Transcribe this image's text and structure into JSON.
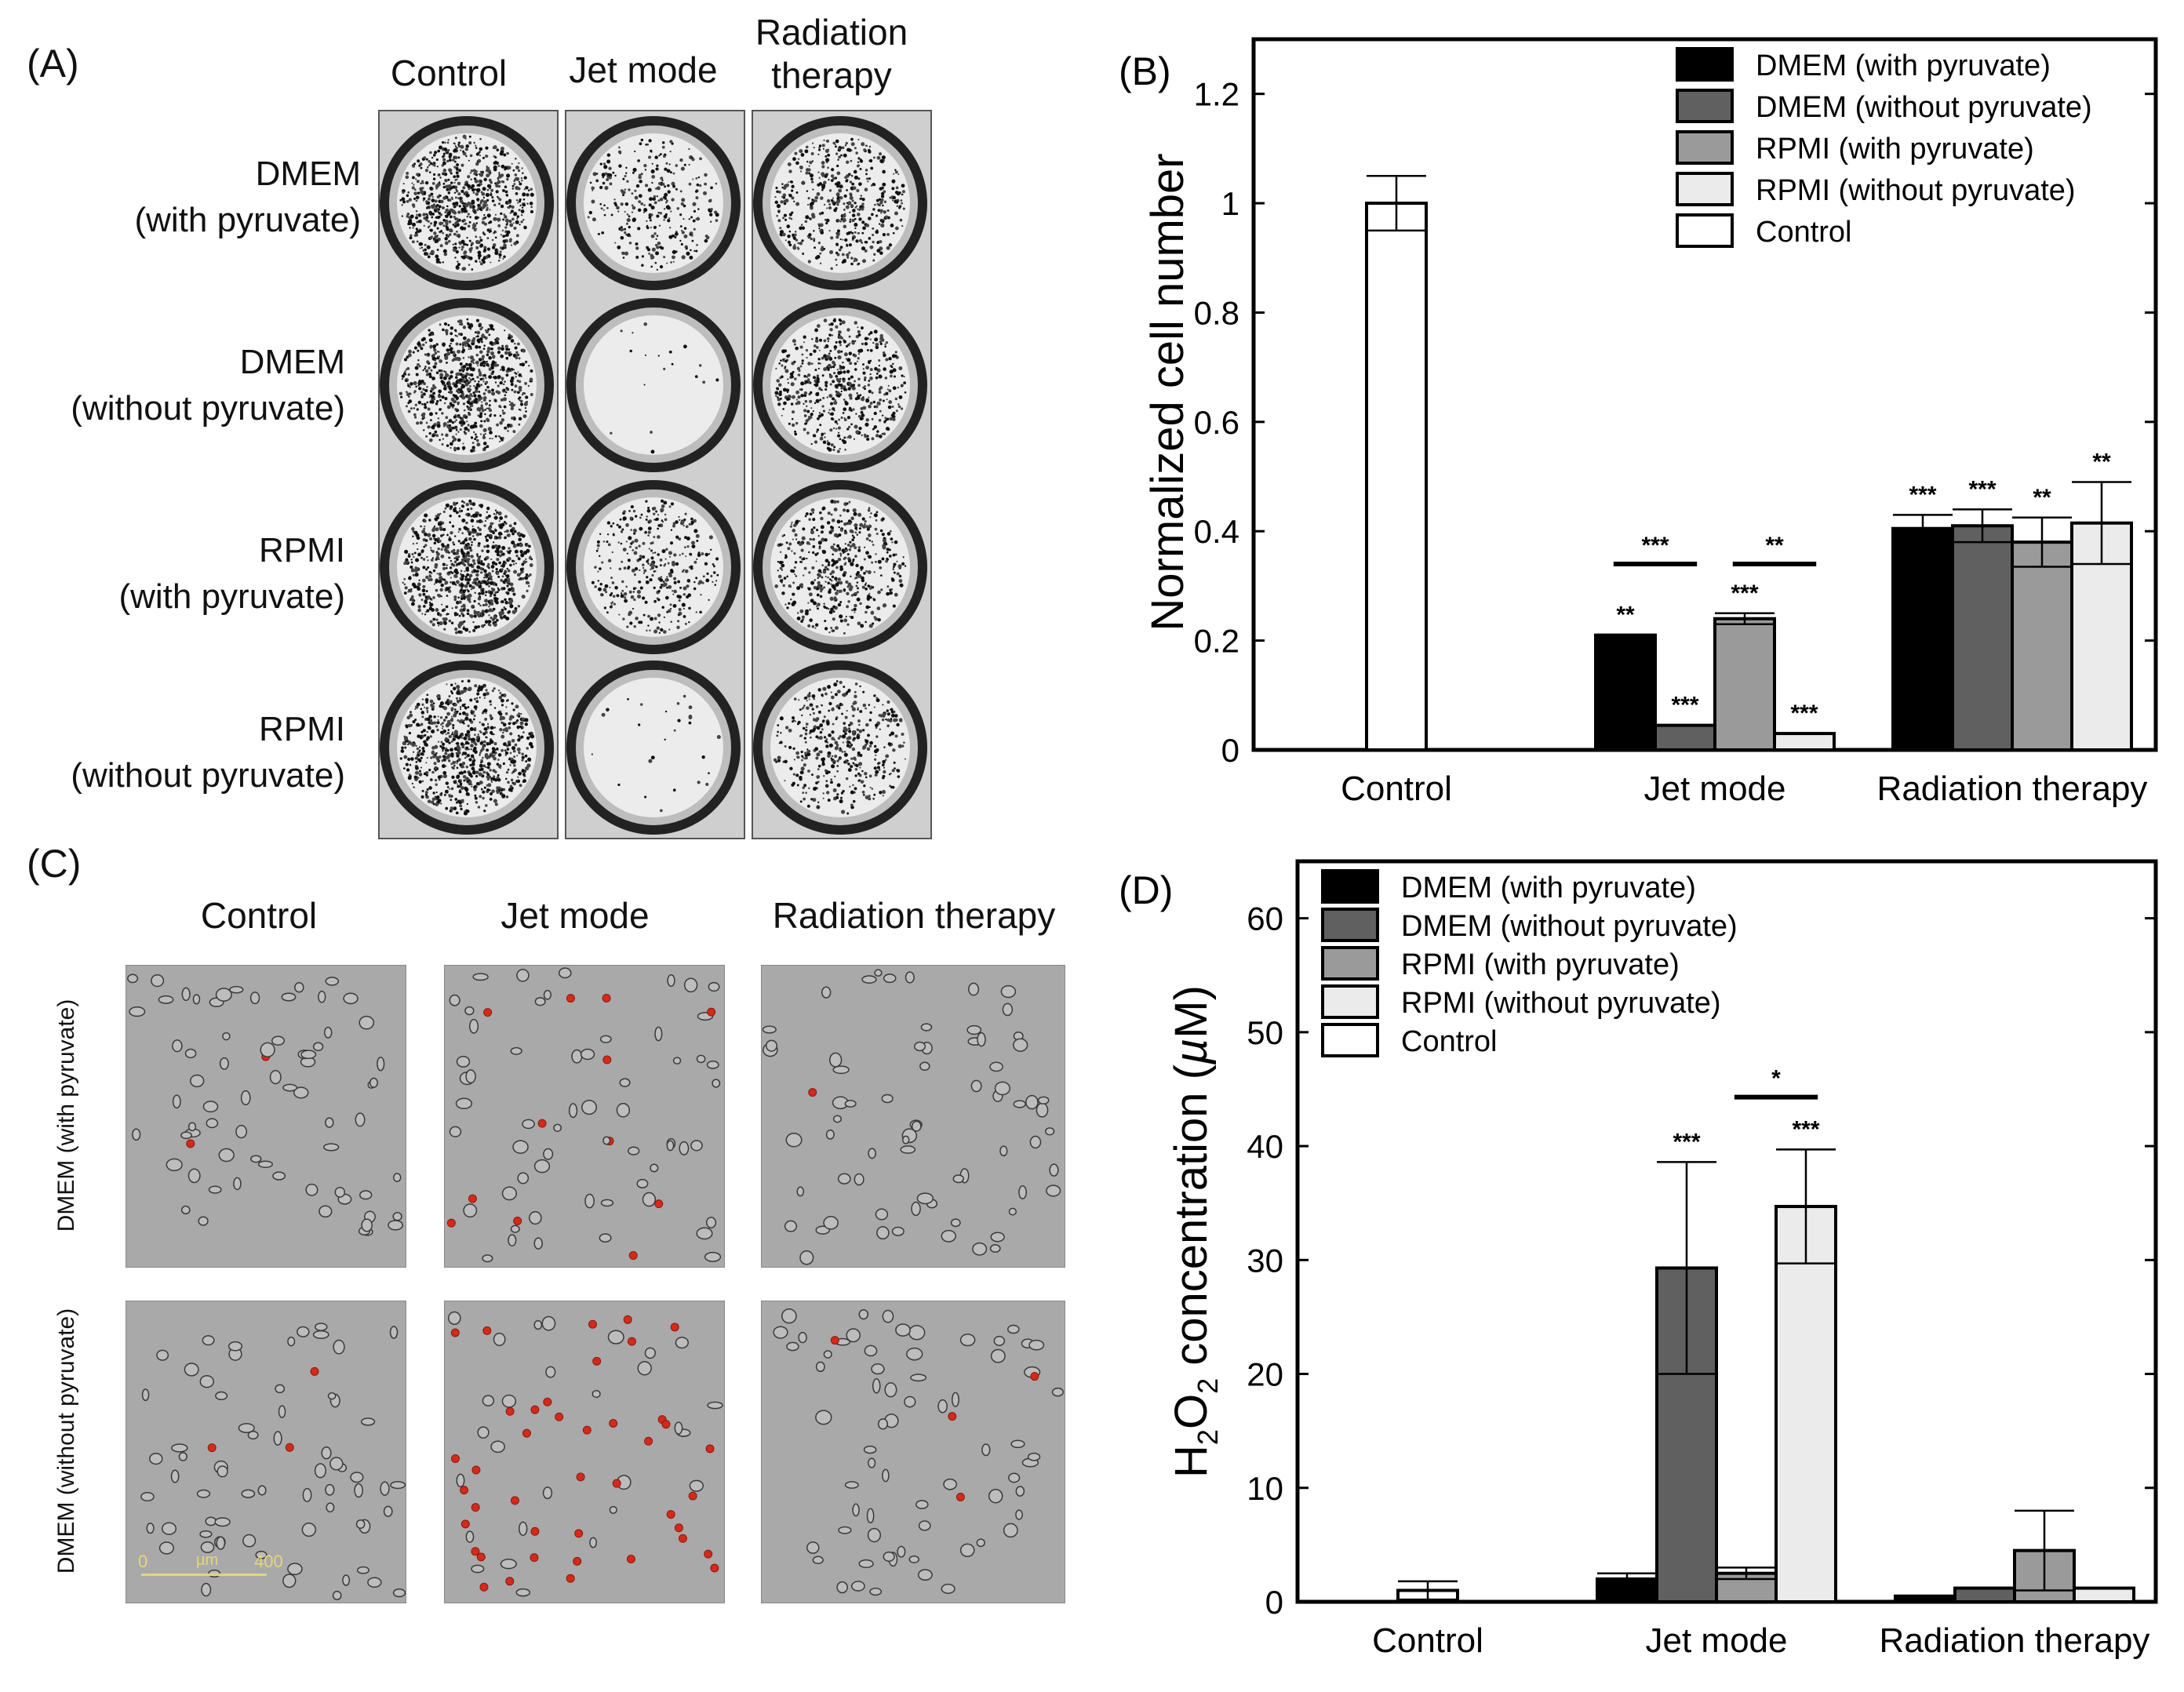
{
  "panel_a": {
    "letter": "(A)",
    "columns": [
      "Control",
      "Jet mode",
      "Radiation\ntherapy"
    ],
    "rows": [
      "DMEM\n(with pyruvate)",
      "DMEM\n(without pyruvate)",
      "RPMI\n(with pyruvate)",
      "RPMI\n(without pyruvate)"
    ],
    "well_density": [
      [
        0.9,
        0.35,
        0.55
      ],
      [
        0.9,
        0.02,
        0.6
      ],
      [
        0.95,
        0.4,
        0.55
      ],
      [
        0.9,
        0.03,
        0.5
      ]
    ]
  },
  "panel_c": {
    "letter": "(C)",
    "columns": [
      "Control",
      "Jet mode",
      "Radiation therapy"
    ],
    "rows": [
      "DMEM (with pyruvate)",
      "DMEM (without pyruvate)"
    ],
    "scale_start": "0",
    "scale_unit": "µm",
    "scale_end": "400",
    "red_fraction": [
      [
        0.02,
        0.12,
        0.06
      ],
      [
        0.03,
        0.7,
        0.03
      ]
    ]
  },
  "colors": {
    "dmem_with": "#000000",
    "dmem_without": "#606060",
    "rpmi_with": "#9a9a9a",
    "rpmi_without": "#ebebeb",
    "control": "#ffffff",
    "dead_cell": "#d42a1a"
  },
  "chart_data": [
    {
      "type": "bar",
      "letter": "(B)",
      "title": "",
      "ylabel": "Normalized cell number",
      "categories": [
        "Control",
        "Jet mode",
        "Radiation therapy"
      ],
      "ylim": [
        0,
        1.3
      ],
      "yticks": [
        "0",
        "0.2",
        "0.4",
        "0.6",
        "0.8",
        "1",
        "1.2"
      ],
      "legend_position": "top-right",
      "series": [
        {
          "name": "DMEM (with pyruvate)",
          "color": "#000000",
          "values": [
            null,
            0.21,
            0.405
          ],
          "errors": [
            null,
            0,
            0.025
          ],
          "sig": [
            null,
            "**",
            "***"
          ]
        },
        {
          "name": "DMEM (without pyruvate)",
          "color": "#606060",
          "values": [
            null,
            0.045,
            0.41
          ],
          "errors": [
            null,
            0,
            0.03
          ],
          "sig": [
            null,
            "***",
            "***"
          ]
        },
        {
          "name": "RPMI (with pyruvate)",
          "color": "#9a9a9a",
          "values": [
            null,
            0.24,
            0.38
          ],
          "errors": [
            null,
            0.01,
            0.045
          ],
          "sig": [
            null,
            "***",
            "**"
          ]
        },
        {
          "name": "RPMI (without pyruvate)",
          "color": "#ebebeb",
          "values": [
            null,
            0.03,
            0.415
          ],
          "errors": [
            null,
            0,
            0.075
          ],
          "sig": [
            null,
            "***",
            "**"
          ]
        },
        {
          "name": "Control",
          "color": "#ffffff",
          "values": [
            1.0,
            null,
            null
          ],
          "errors": [
            0.05,
            null,
            null
          ],
          "sig": [
            null,
            null,
            null
          ]
        }
      ],
      "comparisons": [
        {
          "category": 1,
          "from": 0,
          "to": 1,
          "y": 0.34,
          "label": "***"
        },
        {
          "category": 1,
          "from": 2,
          "to": 3,
          "y": 0.34,
          "label": "**"
        }
      ]
    },
    {
      "type": "bar",
      "letter": "(D)",
      "title": "",
      "ylabel_main": "H",
      "ylabel_sub1": "2",
      "ylabel_mid": "O",
      "ylabel_sub2": "2",
      "ylabel_rest": "  concentration (",
      "ylabel_mu": "µ",
      "ylabel_end": "M)",
      "categories": [
        "Control",
        "Jet mode",
        "Radiation therapy"
      ],
      "ylim": [
        0,
        65
      ],
      "yticks": [
        "0",
        "10",
        "20",
        "30",
        "40",
        "50",
        "60"
      ],
      "legend_position": "top-left",
      "series": [
        {
          "name": "DMEM (with pyruvate)",
          "color": "#000000",
          "values": [
            null,
            2.0,
            0.5
          ],
          "errors": [
            null,
            0.5,
            0
          ],
          "sig": [
            null,
            null,
            null
          ]
        },
        {
          "name": "DMEM (without pyruvate)",
          "color": "#606060",
          "values": [
            null,
            29.3,
            1.2
          ],
          "errors": [
            null,
            9.3,
            0
          ],
          "sig": [
            null,
            "***",
            null
          ]
        },
        {
          "name": "RPMI (with pyruvate)",
          "color": "#9a9a9a",
          "values": [
            null,
            2.5,
            4.5
          ],
          "errors": [
            null,
            0.5,
            3.5
          ],
          "sig": [
            null,
            null,
            null
          ]
        },
        {
          "name": "RPMI (without pyruvate)",
          "color": "#ebebeb",
          "values": [
            null,
            34.7,
            1.2
          ],
          "errors": [
            null,
            5.0,
            0
          ],
          "sig": [
            null,
            "***",
            null
          ]
        },
        {
          "name": "Control",
          "color": "#ffffff",
          "values": [
            1.0,
            null,
            null
          ],
          "errors": [
            0.8,
            null,
            null
          ],
          "sig": [
            null,
            null,
            null
          ]
        }
      ],
      "comparisons": [
        {
          "category": 1,
          "from": 2,
          "to": 3,
          "y": 44.3,
          "label": "*"
        }
      ]
    }
  ]
}
